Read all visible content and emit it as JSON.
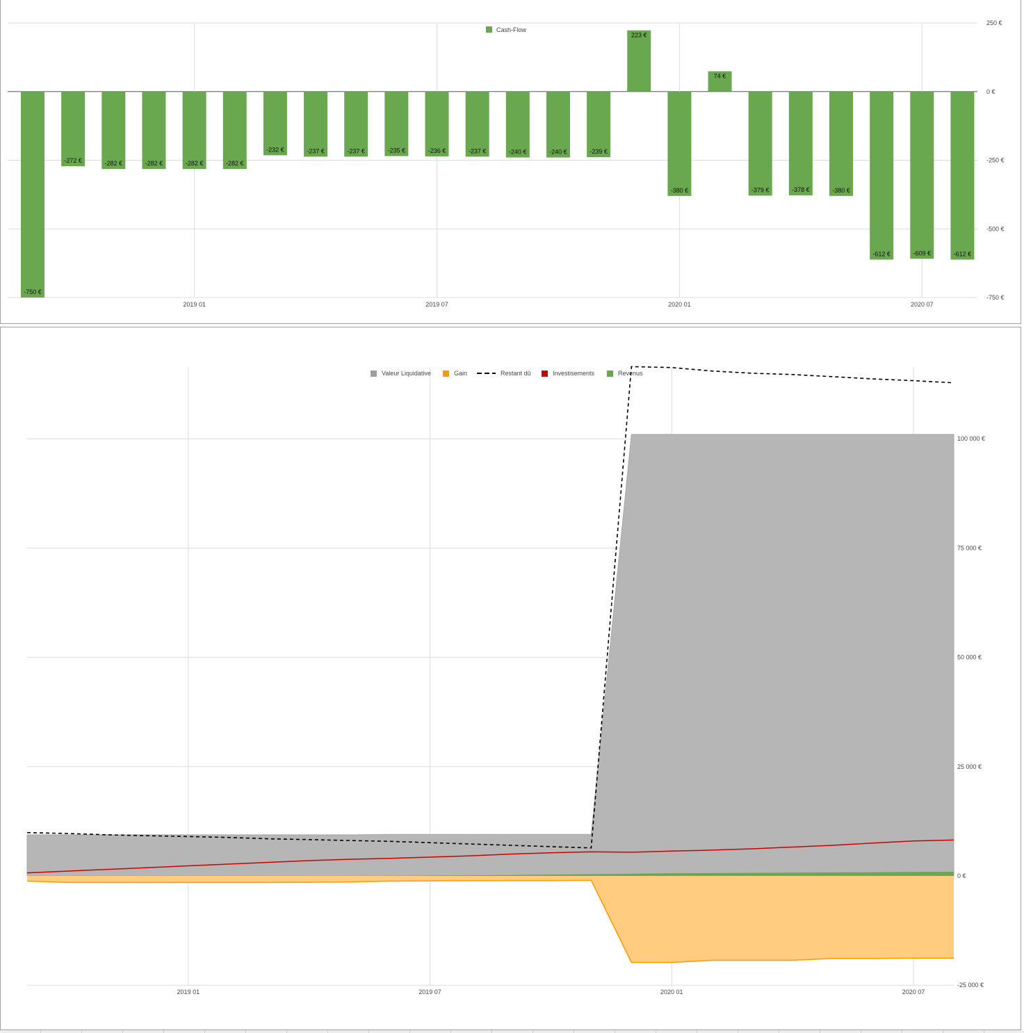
{
  "chart_data": [
    {
      "type": "bar",
      "legend": [
        {
          "name": "Cash-Flow",
          "color": "#6aa84f"
        }
      ],
      "legend_position": "top-center",
      "series": [
        {
          "name": "Cash-Flow",
          "color": "#6aa84f",
          "values": [
            -750,
            -272,
            -282,
            -282,
            -282,
            -282,
            -232,
            -237,
            -237,
            -235,
            -236,
            -237,
            -240,
            -240,
            -239,
            223,
            -380,
            74,
            -379,
            -378,
            -380,
            -612,
            -609,
            -612
          ]
        }
      ],
      "value_labels": [
        "-750 €",
        "-272 €",
        "-282 €",
        "-282 €",
        "-282 €",
        "-282 €",
        "-232 €",
        "-237 €",
        "-237 €",
        "-235 €",
        "-236 €",
        "-237 €",
        "-240 €",
        "-240 €",
        "-239 €",
        "223 €",
        "-380 €",
        "74 €",
        "-379 €",
        "-378 €",
        "-380 €",
        "-612 €",
        "-609 €",
        "-612 €"
      ],
      "x": [
        "2018-09",
        "2018-10",
        "2018-11",
        "2018-12",
        "2019-01",
        "2019-02",
        "2019-03",
        "2019-04",
        "2019-05",
        "2019-06",
        "2019-07",
        "2019-08",
        "2019-09",
        "2019-10",
        "2019-11",
        "2019-12",
        "2020-01",
        "2020-02",
        "2020-03",
        "2020-04",
        "2020-05",
        "2020-06",
        "2020-07",
        "2020-08"
      ],
      "x_ticks": [
        {
          "date": "2019-01",
          "label": "2019 01"
        },
        {
          "date": "2019-07",
          "label": "2019 07"
        },
        {
          "date": "2020-01",
          "label": "2020 01"
        },
        {
          "date": "2020-07",
          "label": "2020 07"
        }
      ],
      "y_ticks": [
        {
          "value": 250,
          "label": "250 €"
        },
        {
          "value": 0,
          "label": "0 €"
        },
        {
          "value": -250,
          "label": "-250 €"
        },
        {
          "value": -500,
          "label": "-500 €"
        },
        {
          "value": -750,
          "label": "-750 €"
        }
      ],
      "ylim": [
        -750,
        250
      ],
      "grid": true,
      "y_axis_side": "right"
    },
    {
      "type": "area",
      "legend_position": "top-center",
      "legend": [
        {
          "name": "Valeur Liquidative",
          "color": "#9e9e9e",
          "style": "box"
        },
        {
          "name": "Gain",
          "color": "#ff9900",
          "style": "box"
        },
        {
          "name": "Restant dû",
          "color": "#000000",
          "style": "dash"
        },
        {
          "name": "Investisements",
          "color": "#cc0000",
          "style": "box"
        },
        {
          "name": "Revenus",
          "color": "#6aa84f",
          "style": "box"
        }
      ],
      "x": [
        "2018-09",
        "2018-10",
        "2018-11",
        "2018-12",
        "2019-01",
        "2019-02",
        "2019-03",
        "2019-04",
        "2019-05",
        "2019-06",
        "2019-07",
        "2019-08",
        "2019-09",
        "2019-10",
        "2019-11",
        "2019-12",
        "2020-01",
        "2020-02",
        "2020-03",
        "2020-04",
        "2020-05",
        "2020-06",
        "2020-07",
        "2020-08"
      ],
      "series": [
        {
          "name": "Valeur Liquidative",
          "kind": "area",
          "color": "#b6b6b6",
          "values": [
            9400,
            9400,
            9400,
            9400,
            9400,
            9400,
            9400,
            9400,
            9400,
            9500,
            9500,
            9500,
            9500,
            9500,
            9500,
            101000,
            101000,
            101000,
            101000,
            101000,
            101000,
            101000,
            101000,
            101000
          ]
        },
        {
          "name": "Gain",
          "kind": "area",
          "color": "#ffcc80",
          "line_color": "#ff9900",
          "values": [
            -1200,
            -1500,
            -1500,
            -1500,
            -1500,
            -1500,
            -1500,
            -1450,
            -1400,
            -1200,
            -1150,
            -1100,
            -1050,
            -1050,
            -1000,
            -19800,
            -19800,
            -19300,
            -19300,
            -19300,
            -18900,
            -18900,
            -18800,
            -18800
          ]
        },
        {
          "name": "Revenus",
          "kind": "area",
          "color": "#6aa84f",
          "values": [
            0,
            0,
            0,
            0,
            0,
            0,
            0,
            0,
            0,
            50,
            100,
            150,
            200,
            300,
            400,
            500,
            600,
            650,
            700,
            750,
            800,
            850,
            900,
            950
          ]
        },
        {
          "name": "Investisements",
          "kind": "line",
          "color": "#cc0000",
          "values": [
            700,
            1100,
            1500,
            1900,
            2300,
            2700,
            3100,
            3500,
            3800,
            4000,
            4300,
            4600,
            5000,
            5300,
            5500,
            5400,
            5700,
            5900,
            6200,
            6600,
            7000,
            7500,
            8000,
            8200
          ]
        },
        {
          "name": "Restant dû",
          "kind": "dashed",
          "color": "#000000",
          "values": [
            9900,
            9700,
            9400,
            9200,
            9000,
            8800,
            8500,
            8300,
            8100,
            7900,
            7600,
            7300,
            7000,
            6700,
            6400,
            116500,
            116300,
            115500,
            115000,
            114700,
            114200,
            113700,
            113300,
            112800
          ]
        }
      ],
      "x_ticks": [
        {
          "date": "2019-01",
          "label": "2019 01"
        },
        {
          "date": "2019-07",
          "label": "2019 07"
        },
        {
          "date": "2020-01",
          "label": "2020 01"
        },
        {
          "date": "2020-07",
          "label": "2020 07"
        }
      ],
      "y_ticks": [
        {
          "value": 100000,
          "label": "100 000 €"
        },
        {
          "value": 75000,
          "label": "75 000 €"
        },
        {
          "value": 50000,
          "label": "50 000 €"
        },
        {
          "value": 25000,
          "label": "25 000 €"
        },
        {
          "value": 0,
          "label": "0 €"
        },
        {
          "value": -25000,
          "label": "-25 000 €"
        }
      ],
      "ylim": [
        -25000,
        116500
      ],
      "grid": true,
      "y_axis_side": "right"
    }
  ]
}
